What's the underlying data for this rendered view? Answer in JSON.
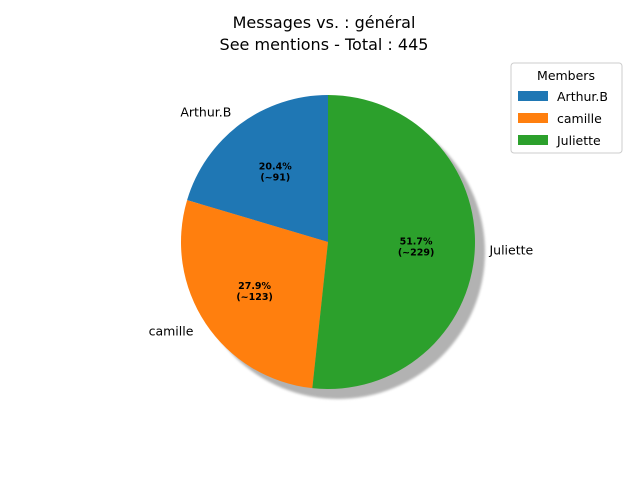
{
  "chart_data": {
    "type": "pie",
    "title_line1": "Messages vs. : général",
    "title_line2": "See mentions - Total : 445",
    "total": 445,
    "legend_title": "Members",
    "legend_position": "top-right",
    "shadow": true,
    "slices": [
      {
        "name": "Arthur.B",
        "value": 91,
        "percent": 20.4,
        "pct_label": "20.4%",
        "count_label": "(~91)",
        "color": "#1f77b4"
      },
      {
        "name": "camille",
        "value": 123,
        "percent": 27.9,
        "pct_label": "27.9%",
        "count_label": "(~123)",
        "color": "#ff7f0e"
      },
      {
        "name": "Juliette",
        "value": 229,
        "percent": 51.7,
        "pct_label": "51.7%",
        "count_label": "(~229)",
        "color": "#2ca02c"
      }
    ]
  }
}
